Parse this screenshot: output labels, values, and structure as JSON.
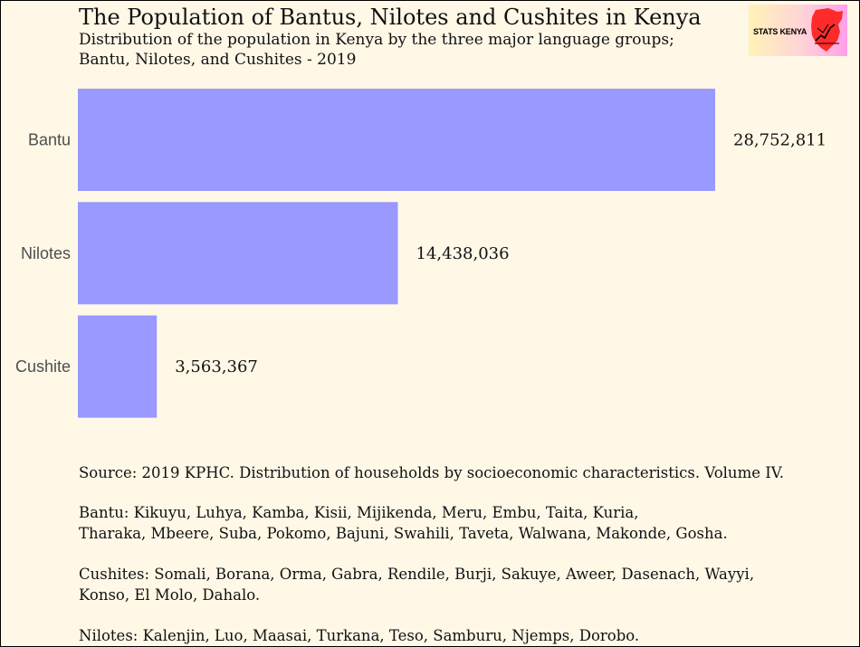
{
  "header": {
    "title": "The Population of Bantus, Nilotes and Cushites in Kenya",
    "subtitle_line1": "Distribution of the population in Kenya by the three major language groups;",
    "subtitle_line2": "Bantu, Nilotes, and Cushites - 2019"
  },
  "logo": {
    "text": "STATS KENYA",
    "icon": "kenya-map-chart-icon"
  },
  "colors": {
    "background": "#fff8e7",
    "bar": "#9999ff",
    "logo_map": "#ff2a2a"
  },
  "chart_data": {
    "type": "bar",
    "orientation": "horizontal",
    "categories": [
      "Bantu",
      "Nilotes",
      "Cushite"
    ],
    "values": [
      28752811,
      14438036,
      3563367
    ],
    "value_labels": [
      "28,752,811",
      "14,438,036",
      "3,563,367"
    ],
    "title": "The Population of Bantus, Nilotes and Cushites in Kenya",
    "subtitle": "Distribution of the population in Kenya by the three major language groups; Bantu, Nilotes, and Cushites - 2019",
    "xlabel": "",
    "ylabel": "",
    "xlim": [
      0,
      28752811
    ],
    "grid": false,
    "legend": "none"
  },
  "notes": {
    "source": "Source: 2019 KPHC. Distribution of households by socioeconomic characteristics. Volume IV.",
    "bantu_line1": "Bantu: Kikuyu, Luhya, Kamba, Kisii, Mijikenda, Meru, Embu, Taita, Kuria,",
    "bantu_line2": "Tharaka, Mbeere, Suba, Pokomo, Bajuni, Swahili, Taveta, Walwana, Makonde, Gosha.",
    "cushites_line1": "Cushites: Somali, Borana, Orma, Gabra, Rendile, Burji, Sakuye, Aweer, Dasenach, Wayyi,",
    "cushites_line2": "Konso, El Molo, Dahalo.",
    "nilotes": "Nilotes: Kalenjin, Luo, Maasai, Turkana, Teso, Samburu, Njemps, Dorobo."
  }
}
